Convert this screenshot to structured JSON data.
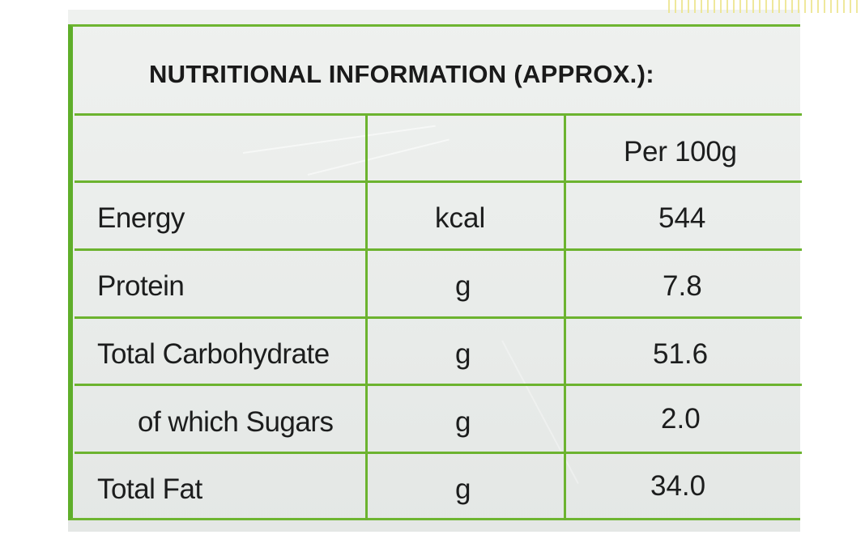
{
  "label": {
    "title": "NUTRITIONAL INFORMATION (APPROX.):",
    "column_headers": [
      "",
      "",
      "Per 100g"
    ],
    "rows": [
      {
        "nutrient": "Energy",
        "unit": "kcal",
        "per_100g": "544"
      },
      {
        "nutrient": "Protein",
        "unit": "g",
        "per_100g": "7.8"
      },
      {
        "nutrient": "Total Carbohydrate",
        "unit": "g",
        "per_100g": "51.6"
      },
      {
        "nutrient": "of which Sugars",
        "unit": "g",
        "per_100g": "2.0"
      },
      {
        "nutrient": "Total Fat",
        "unit": "g",
        "per_100g": "34.0"
      }
    ]
  },
  "colors": {
    "grid_green": "#6cb32f",
    "panel_gray": "#eceeec",
    "text": "#1c1d1d"
  }
}
